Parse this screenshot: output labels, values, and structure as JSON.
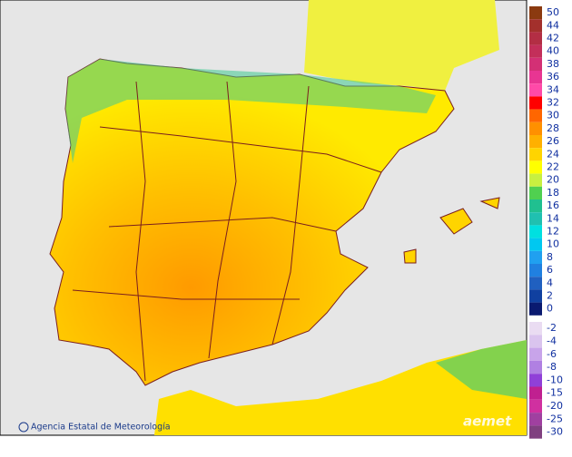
{
  "legend": {
    "items": [
      {
        "label": "50",
        "color": "#8b3a10"
      },
      {
        "label": "44",
        "color": "#a3302c"
      },
      {
        "label": "42",
        "color": "#b32e44"
      },
      {
        "label": "40",
        "color": "#c32f5a"
      },
      {
        "label": "38",
        "color": "#d33075"
      },
      {
        "label": "36",
        "color": "#e83592"
      },
      {
        "label": "34",
        "color": "#ff4aa8"
      },
      {
        "label": "32",
        "color": "#ff0000"
      },
      {
        "label": "30",
        "color": "#ff6600"
      },
      {
        "label": "28",
        "color": "#ff9000"
      },
      {
        "label": "26",
        "color": "#ffb000"
      },
      {
        "label": "24",
        "color": "#ffd400"
      },
      {
        "label": "22",
        "color": "#ffff00"
      },
      {
        "label": "20",
        "color": "#c8f040"
      },
      {
        "label": "18",
        "color": "#50d050"
      },
      {
        "label": "16",
        "color": "#20c090"
      },
      {
        "label": "14",
        "color": "#20c0b0"
      },
      {
        "label": "12",
        "color": "#00e0e0"
      },
      {
        "label": "10",
        "color": "#00c8f0"
      },
      {
        "label": "8",
        "color": "#20a0f0"
      },
      {
        "label": "6",
        "color": "#2080e0"
      },
      {
        "label": "4",
        "color": "#2060c0"
      },
      {
        "label": "2",
        "color": "#1040a0"
      },
      {
        "label": "0",
        "color": "#0a1a70"
      }
    ],
    "negative_items": [
      {
        "label": "-2",
        "color": "#eadcf2"
      },
      {
        "label": "-4",
        "color": "#dac4ee"
      },
      {
        "label": "-6",
        "color": "#c8a4ea"
      },
      {
        "label": "-8",
        "color": "#b080e2"
      },
      {
        "label": "-10",
        "color": "#9040d8"
      },
      {
        "label": "-15",
        "color": "#c02090"
      },
      {
        "label": "-20",
        "color": "#d030a0"
      },
      {
        "label": "-25",
        "color": "#a040a0"
      },
      {
        "label": "-30",
        "color": "#804080"
      }
    ]
  },
  "credit": "Agencia Estatal de Meteorología",
  "logo": "aemet"
}
